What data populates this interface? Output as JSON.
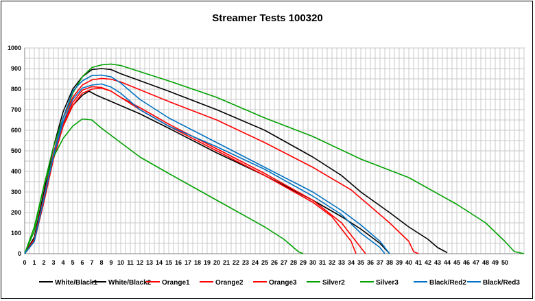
{
  "chart_data": {
    "type": "line",
    "title": "Streamer Tests 100320",
    "xlabel": "",
    "ylabel": "",
    "xlim": [
      0,
      52
    ],
    "ylim": [
      0,
      1000
    ],
    "x_ticks": [
      "0",
      "1",
      "2",
      "3",
      "4",
      "5",
      "6",
      "7",
      "8",
      "9",
      "10",
      "11",
      "12",
      "13",
      "14",
      "15",
      "16",
      "17",
      "18",
      "19",
      "20",
      "21",
      "22",
      "23",
      "24",
      "25",
      "26",
      "27",
      "28",
      "29",
      "30",
      "31",
      "32",
      "33",
      "34",
      "35",
      "36",
      "37",
      "38",
      "39",
      "40",
      "41",
      "42",
      "43",
      "44",
      "45",
      "46",
      "47",
      "48",
      "49",
      "50"
    ],
    "y_ticks": [
      "0",
      "100",
      "200",
      "300",
      "400",
      "500",
      "600",
      "700",
      "800",
      "900",
      "1000"
    ],
    "grid": true,
    "legend_position": "bottom",
    "series": [
      {
        "name": "White/Black1",
        "color": "#000000",
        "points": [
          [
            0,
            0
          ],
          [
            1,
            70
          ],
          [
            2,
            270
          ],
          [
            3,
            470
          ],
          [
            4,
            620
          ],
          [
            5,
            720
          ],
          [
            6,
            770
          ],
          [
            6.7,
            790
          ],
          [
            7.5,
            770
          ],
          [
            8,
            760
          ],
          [
            10,
            720
          ],
          [
            12,
            680
          ],
          [
            15,
            610
          ],
          [
            20,
            490
          ],
          [
            25,
            380
          ],
          [
            30,
            260
          ],
          [
            33,
            180
          ],
          [
            35,
            120
          ],
          [
            37,
            50
          ],
          [
            38,
            0
          ]
        ]
      },
      {
        "name": "White/Black2",
        "color": "#000000",
        "points": [
          [
            0,
            0
          ],
          [
            1,
            80
          ],
          [
            2,
            300
          ],
          [
            3,
            520
          ],
          [
            4,
            690
          ],
          [
            5,
            800
          ],
          [
            6,
            860
          ],
          [
            7,
            895
          ],
          [
            8,
            900
          ],
          [
            9,
            895
          ],
          [
            10,
            875
          ],
          [
            15,
            790
          ],
          [
            20,
            700
          ],
          [
            25,
            600
          ],
          [
            30,
            470
          ],
          [
            33,
            380
          ],
          [
            35,
            300
          ],
          [
            38,
            200
          ],
          [
            40,
            130
          ],
          [
            42,
            70
          ],
          [
            43,
            30
          ],
          [
            44,
            5
          ]
        ]
      },
      {
        "name": "Orange1",
        "color": "#ff0000",
        "points": [
          [
            0,
            0
          ],
          [
            1,
            60
          ],
          [
            2,
            250
          ],
          [
            3,
            460
          ],
          [
            4,
            620
          ],
          [
            5,
            720
          ],
          [
            6,
            780
          ],
          [
            7,
            800
          ],
          [
            8,
            805
          ],
          [
            9,
            790
          ],
          [
            10,
            760
          ],
          [
            12,
            710
          ],
          [
            15,
            630
          ],
          [
            20,
            510
          ],
          [
            25,
            390
          ],
          [
            30,
            260
          ],
          [
            33,
            150
          ],
          [
            34,
            90
          ],
          [
            35,
            30
          ],
          [
            35.5,
            0
          ]
        ]
      },
      {
        "name": "Orange2",
        "color": "#ff0000",
        "points": [
          [
            0,
            0
          ],
          [
            1,
            60
          ],
          [
            2,
            255
          ],
          [
            3,
            465
          ],
          [
            4,
            630
          ],
          [
            5,
            735
          ],
          [
            6,
            795
          ],
          [
            7,
            812
          ],
          [
            8,
            808
          ],
          [
            9,
            790
          ],
          [
            10,
            760
          ],
          [
            12,
            700
          ],
          [
            15,
            620
          ],
          [
            20,
            500
          ],
          [
            25,
            380
          ],
          [
            30,
            250
          ],
          [
            32,
            180
          ],
          [
            33,
            120
          ],
          [
            34,
            60
          ],
          [
            34.5,
            0
          ]
        ]
      },
      {
        "name": "Orange3",
        "color": "#ff0000",
        "points": [
          [
            0,
            0
          ],
          [
            1,
            70
          ],
          [
            2,
            280
          ],
          [
            3,
            490
          ],
          [
            4,
            660
          ],
          [
            5,
            760
          ],
          [
            6,
            820
          ],
          [
            7,
            845
          ],
          [
            8,
            852
          ],
          [
            9,
            848
          ],
          [
            10,
            835
          ],
          [
            15,
            740
          ],
          [
            20,
            650
          ],
          [
            25,
            540
          ],
          [
            30,
            420
          ],
          [
            34,
            310
          ],
          [
            36,
            230
          ],
          [
            38,
            150
          ],
          [
            40,
            60
          ],
          [
            40.5,
            10
          ],
          [
            41,
            0
          ]
        ]
      },
      {
        "name": "Silver2",
        "color": "#00a000",
        "points": [
          [
            0,
            0
          ],
          [
            1,
            110
          ],
          [
            2,
            330
          ],
          [
            3,
            520
          ],
          [
            4,
            660
          ],
          [
            5,
            780
          ],
          [
            6,
            860
          ],
          [
            7,
            905
          ],
          [
            8,
            918
          ],
          [
            9,
            922
          ],
          [
            10,
            915
          ],
          [
            15,
            840
          ],
          [
            20,
            760
          ],
          [
            25,
            660
          ],
          [
            30,
            570
          ],
          [
            35,
            460
          ],
          [
            40,
            370
          ],
          [
            45,
            240
          ],
          [
            48,
            150
          ],
          [
            50,
            60
          ],
          [
            51,
            10
          ],
          [
            52,
            0
          ]
        ]
      },
      {
        "name": "Silver3",
        "color": "#00a000",
        "points": [
          [
            0,
            0
          ],
          [
            1,
            130
          ],
          [
            2,
            330
          ],
          [
            3,
            470
          ],
          [
            4,
            560
          ],
          [
            5,
            620
          ],
          [
            6,
            655
          ],
          [
            7,
            650
          ],
          [
            8,
            610
          ],
          [
            10,
            540
          ],
          [
            12,
            470
          ],
          [
            15,
            390
          ],
          [
            20,
            260
          ],
          [
            25,
            130
          ],
          [
            27,
            70
          ],
          [
            28.5,
            10
          ],
          [
            29,
            0
          ]
        ]
      },
      {
        "name": "Black/Red2",
        "color": "#0070c0",
        "points": [
          [
            0,
            0
          ],
          [
            1,
            60
          ],
          [
            2,
            265
          ],
          [
            3,
            475
          ],
          [
            4,
            640
          ],
          [
            5,
            750
          ],
          [
            6,
            805
          ],
          [
            7,
            820
          ],
          [
            8,
            825
          ],
          [
            9,
            810
          ],
          [
            10,
            780
          ],
          [
            12,
            700
          ],
          [
            15,
            620
          ],
          [
            20,
            520
          ],
          [
            25,
            410
          ],
          [
            30,
            280
          ],
          [
            33,
            190
          ],
          [
            35,
            100
          ],
          [
            37,
            30
          ],
          [
            37.5,
            0
          ]
        ]
      },
      {
        "name": "Black/Red3",
        "color": "#0070c0",
        "points": [
          [
            0,
            0
          ],
          [
            1,
            60
          ],
          [
            2,
            270
          ],
          [
            3,
            480
          ],
          [
            4,
            660
          ],
          [
            5,
            790
          ],
          [
            6,
            840
          ],
          [
            7,
            866
          ],
          [
            8,
            868
          ],
          [
            9,
            860
          ],
          [
            10,
            830
          ],
          [
            12,
            750
          ],
          [
            15,
            660
          ],
          [
            20,
            540
          ],
          [
            25,
            420
          ],
          [
            30,
            300
          ],
          [
            33,
            210
          ],
          [
            35,
            140
          ],
          [
            37,
            60
          ],
          [
            38,
            0
          ]
        ]
      }
    ]
  }
}
